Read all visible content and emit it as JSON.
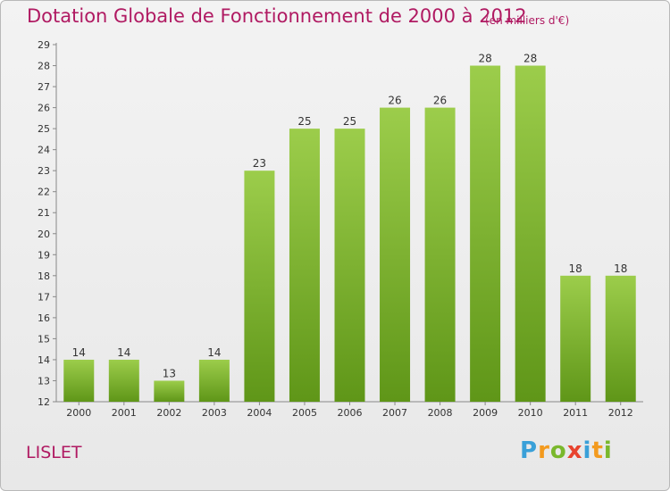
{
  "chart_data": {
    "type": "bar",
    "title": "Dotation Globale de Fonctionnement de 2000 à 2012",
    "subtitle": "(en milliers d'€)",
    "categories": [
      "2000",
      "2001",
      "2002",
      "2003",
      "2004",
      "2005",
      "2006",
      "2007",
      "2008",
      "2009",
      "2010",
      "2011",
      "2012"
    ],
    "values": [
      14,
      14,
      13,
      14,
      23,
      25,
      25,
      26,
      26,
      28,
      28,
      18,
      18
    ],
    "ylim": [
      12,
      29
    ],
    "yticks": [
      12,
      13,
      14,
      15,
      16,
      17,
      18,
      19,
      20,
      21,
      22,
      23,
      24,
      25,
      26,
      27,
      28,
      29
    ],
    "grid": false,
    "bar_color": "#7ab82c"
  },
  "footer": {
    "commune": "LISLET",
    "logo": {
      "letters": [
        "P",
        "r",
        "o",
        "x",
        "i",
        "t",
        "i"
      ],
      "colors": [
        "#3aa0d8",
        "#f39a1e",
        "#7ab82c",
        "#e8432e",
        "#3aa0d8",
        "#f39a1e",
        "#7ab82c"
      ]
    }
  }
}
